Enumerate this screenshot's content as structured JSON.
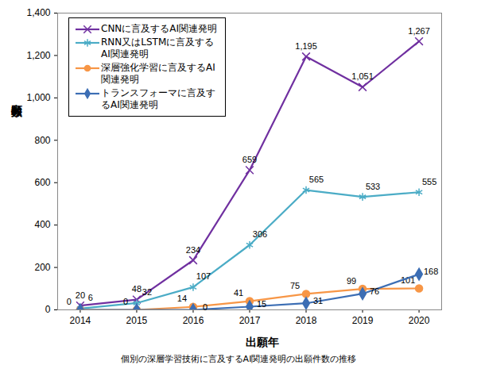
{
  "chart_data": {
    "type": "line",
    "caption": "個別の深層学習技術に言及するAI関連発明の出願件数の推移",
    "x_label": "出願年",
    "y_label": "出願件数",
    "x": [
      2014,
      2015,
      2016,
      2017,
      2018,
      2019,
      2020
    ],
    "xlim": [
      2013.6,
      2020.4
    ],
    "xticks": [
      2014,
      2015,
      2016,
      2017,
      2018,
      2019,
      2020
    ],
    "ylim": [
      0,
      1400
    ],
    "yticks": [
      0,
      200,
      400,
      600,
      800,
      {
        "value": 1000,
        "label": "1,000"
      },
      {
        "value": 1200,
        "label": "1,200"
      },
      {
        "value": 1400,
        "label": "1,400"
      }
    ],
    "grid": false,
    "legend": "top-left",
    "data_labels": true,
    "series": [
      {
        "name": "CNNに言及するAI関連発明",
        "color": "#7030a0",
        "marker": "x",
        "values": [
          20,
          48,
          234,
          659,
          1195,
          1051,
          1267
        ],
        "value_labels": [
          "20",
          "48",
          "234",
          "659",
          "1,195",
          "1,051",
          "1,267"
        ]
      },
      {
        "name": "RNN又はLSTMに言及するAI関連発明",
        "color": "#4bacc6",
        "marker": "asterisk",
        "values": [
          6,
          32,
          107,
          306,
          565,
          533,
          555
        ]
      },
      {
        "name": "深層強化学習に言及するAI関連発明",
        "color": "#f79646",
        "marker": "circle",
        "values": [
          0,
          0,
          14,
          41,
          75,
          99,
          101
        ]
      },
      {
        "name": "トランスフォーマに言及するAI関連発明",
        "color": "#3c6eb4",
        "marker": "diamond",
        "values": [
          0,
          0,
          0,
          15,
          31,
          76,
          168
        ],
        "value_labels": [
          null,
          null,
          "0",
          "15",
          "31",
          "76",
          "168"
        ]
      }
    ]
  }
}
